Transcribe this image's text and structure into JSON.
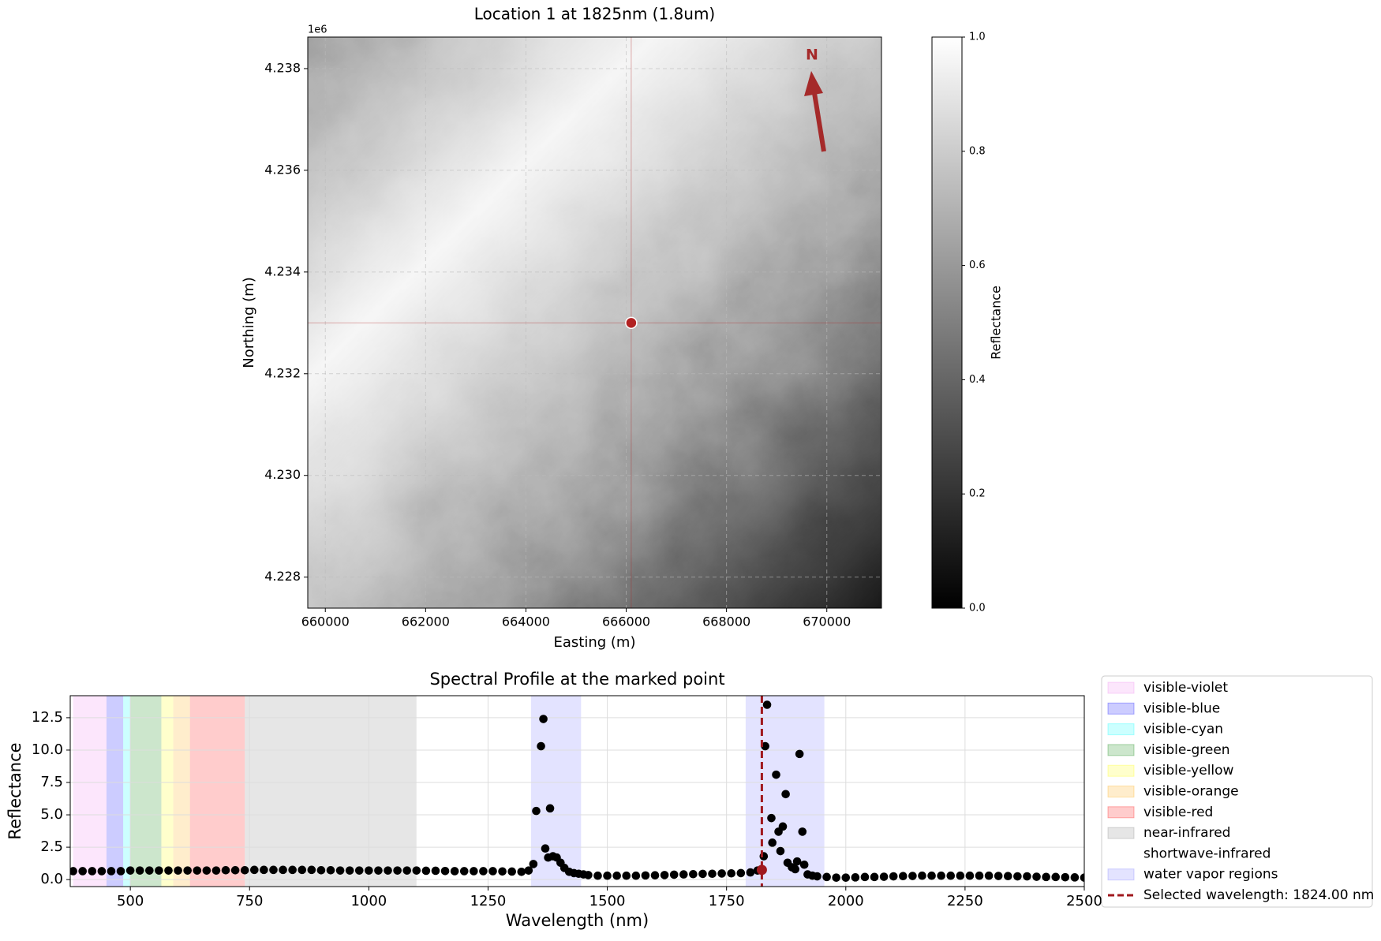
{
  "chart_data": [
    {
      "type": "image",
      "title": "Location 1 at 1825nm (1.8um)",
      "x_label": "Easting (m)",
      "y_label": "Northing (m)",
      "y_offset_label": "1e6",
      "xlim": [
        659650,
        671090
      ],
      "ylim": [
        4.22739,
        4.23862
      ],
      "xticks": [
        660000,
        662000,
        664000,
        666000,
        668000,
        670000
      ],
      "yticks": [
        4.228,
        {
          "value": 4.23,
          "label": "4.230"
        },
        4.232,
        4.234,
        4.236,
        4.238
      ],
      "grid": true,
      "marked_point": {
        "x": 666100,
        "y": 4.233,
        "color": "#b22222"
      },
      "north_label": "N",
      "colorbar": {
        "label": "Reflectance",
        "lim": [
          0,
          1
        ],
        "ticks": [
          {
            "value": 0,
            "label": "0.0"
          },
          0.2,
          0.4,
          0.6,
          0.8,
          {
            "value": 1,
            "label": "1.0"
          }
        ]
      }
    },
    {
      "type": "scatter",
      "title": "Spectral Profile at the marked point",
      "x_label": "Wavelength (nm)",
      "y_label": "Reflectance",
      "xlim": [
        374,
        2500
      ],
      "ylim": [
        -0.54,
        14.2
      ],
      "xticks": [
        500,
        750,
        1000,
        1250,
        1500,
        1750,
        2000,
        2250,
        2500
      ],
      "yticks": [
        {
          "value": 0,
          "label": "0.0"
        },
        2.5,
        {
          "value": 5,
          "label": "5.0"
        },
        7.5,
        {
          "value": 10,
          "label": "10.0"
        },
        12.5
      ],
      "grid": true,
      "legend": "outside-right",
      "bands": [
        {
          "name": "visible-violet",
          "color": "violet",
          "start": 380,
          "end": 450
        },
        {
          "name": "visible-blue",
          "color": "blue",
          "start": 450,
          "end": 485
        },
        {
          "name": "visible-cyan",
          "color": "cyan",
          "start": 485,
          "end": 500
        },
        {
          "name": "visible-green",
          "color": "green",
          "start": 500,
          "end": 565
        },
        {
          "name": "visible-yellow",
          "color": "yellow",
          "start": 565,
          "end": 590
        },
        {
          "name": "visible-orange",
          "color": "orange",
          "start": 590,
          "end": 625
        },
        {
          "name": "visible-red",
          "color": "red",
          "start": 625,
          "end": 740
        },
        {
          "name": "near-infrared",
          "color": "gray",
          "start": 740,
          "end": 1100
        },
        {
          "name": "shortwave-infrared",
          "color": "white",
          "start": 1100,
          "end": 2500
        }
      ],
      "water_vapor": {
        "name": "water vapor regions",
        "color": "#6666ff",
        "ranges": [
          [
            1340,
            1445
          ],
          [
            1790,
            1955
          ]
        ]
      },
      "selected": {
        "name": "Selected wavelength: 1824.00 nm",
        "color": "#a0191e",
        "x": 1824,
        "y": 0.75
      },
      "series": [
        {
          "color": "#000000",
          "x": [
            380,
            400,
            420,
            440,
            460,
            480,
            500,
            520,
            540,
            560,
            580,
            600,
            620,
            640,
            660,
            680,
            700,
            720,
            740,
            760,
            780,
            800,
            820,
            840,
            860,
            880,
            900,
            920,
            940,
            960,
            980,
            1000,
            1020,
            1040,
            1060,
            1080,
            1100,
            1120,
            1140,
            1160,
            1180,
            1200,
            1220,
            1240,
            1260,
            1280,
            1300,
            1320,
            1335,
            1345,
            1351,
            1361,
            1366,
            1370,
            1376,
            1380,
            1386,
            1394,
            1402,
            1410,
            1420,
            1430,
            1440,
            1450,
            1460,
            1480,
            1500,
            1520,
            1540,
            1560,
            1580,
            1600,
            1620,
            1640,
            1660,
            1680,
            1700,
            1720,
            1740,
            1760,
            1780,
            1800,
            1815,
            1828,
            1831,
            1835,
            1844,
            1846,
            1854,
            1859,
            1863,
            1868,
            1874,
            1878,
            1887,
            1894,
            1898,
            1903,
            1909,
            1913,
            1920,
            1930,
            1940,
            1960,
            1980,
            2000,
            2020,
            2040,
            2060,
            2080,
            2100,
            2120,
            2140,
            2160,
            2180,
            2200,
            2220,
            2240,
            2260,
            2280,
            2300,
            2320,
            2340,
            2360,
            2380,
            2400,
            2420,
            2440,
            2460,
            2480,
            2500
          ],
          "values": [
            0.65,
            0.65,
            0.65,
            0.65,
            0.65,
            0.65,
            0.7,
            0.7,
            0.7,
            0.7,
            0.7,
            0.7,
            0.7,
            0.7,
            0.7,
            0.7,
            0.72,
            0.72,
            0.72,
            0.75,
            0.75,
            0.75,
            0.75,
            0.75,
            0.75,
            0.75,
            0.72,
            0.72,
            0.7,
            0.7,
            0.7,
            0.7,
            0.7,
            0.7,
            0.7,
            0.7,
            0.7,
            0.68,
            0.68,
            0.66,
            0.65,
            0.65,
            0.65,
            0.65,
            0.65,
            0.63,
            0.62,
            0.6,
            0.7,
            1.2,
            5.3,
            10.3,
            12.4,
            2.4,
            1.7,
            5.5,
            1.8,
            1.7,
            1.3,
            0.9,
            0.6,
            0.5,
            0.45,
            0.4,
            0.35,
            0.3,
            0.3,
            0.3,
            0.3,
            0.3,
            0.32,
            0.33,
            0.35,
            0.38,
            0.4,
            0.42,
            0.44,
            0.45,
            0.47,
            0.48,
            0.5,
            0.55,
            0.7,
            1.8,
            10.3,
            13.5,
            4.75,
            2.85,
            8.1,
            3.7,
            2.2,
            4.1,
            6.6,
            1.3,
            0.95,
            0.8,
            1.4,
            9.7,
            3.7,
            1.15,
            0.4,
            0.3,
            0.25,
            0.2,
            0.15,
            0.15,
            0.17,
            0.2,
            0.2,
            0.22,
            0.25,
            0.27,
            0.28,
            0.3,
            0.3,
            0.3,
            0.3,
            0.3,
            0.3,
            0.3,
            0.3,
            0.28,
            0.27,
            0.25,
            0.25,
            0.22,
            0.2,
            0.2,
            0.18,
            0.17,
            0.15
          ]
        }
      ]
    }
  ]
}
